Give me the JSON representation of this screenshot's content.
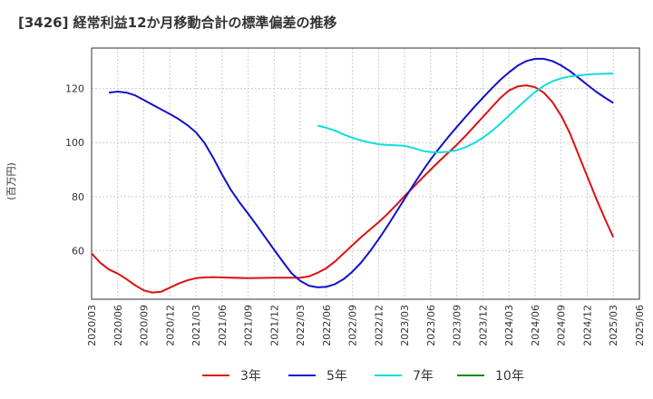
{
  "chart_data": {
    "type": "line",
    "title": "[3426]  経常利益12か月移動合計の標準偏差の推移",
    "ylabel": "(百万円)",
    "xlabel": "",
    "x": [
      "2020/03",
      "2020/06",
      "2020/09",
      "2020/12",
      "2021/03",
      "2021/06",
      "2021/09",
      "2021/12",
      "2022/03",
      "2022/06",
      "2022/09",
      "2022/12",
      "2023/03",
      "2023/06",
      "2023/09",
      "2023/12",
      "2024/03",
      "2024/06",
      "2024/09",
      "2024/12",
      "2025/03",
      "2025/06"
    ],
    "ylim": [
      42,
      135
    ],
    "yticks": [
      60,
      80,
      100,
      120
    ],
    "grid": true,
    "legend_position": "bottom",
    "series": [
      {
        "name": "3年",
        "color": "#dd1111",
        "points": [
          [
            "2020/03",
            59
          ],
          [
            "2020/04",
            55.5
          ],
          [
            "2020/05",
            53
          ],
          [
            "2020/06",
            51.5
          ],
          [
            "2020/07",
            49.5
          ],
          [
            "2020/08",
            47.2
          ],
          [
            "2020/09",
            45.3
          ],
          [
            "2020/10",
            44.5
          ],
          [
            "2020/11",
            44.8
          ],
          [
            "2020/12",
            46.3
          ],
          [
            "2021/01",
            47.8
          ],
          [
            "2021/02",
            49
          ],
          [
            "2021/03",
            49.8
          ],
          [
            "2021/04",
            50.1
          ],
          [
            "2021/05",
            50.2
          ],
          [
            "2021/06",
            50.1
          ],
          [
            "2021/09",
            49.8
          ],
          [
            "2021/12",
            50
          ],
          [
            "2022/03",
            50
          ],
          [
            "2022/04",
            50.5
          ],
          [
            "2022/05",
            51.8
          ],
          [
            "2022/06",
            53.5
          ],
          [
            "2022/07",
            56
          ],
          [
            "2022/08",
            59
          ],
          [
            "2022/09",
            62
          ],
          [
            "2022/10",
            65
          ],
          [
            "2022/11",
            67.8
          ],
          [
            "2022/12",
            70.5
          ],
          [
            "2023/01",
            73.5
          ],
          [
            "2023/02",
            76.8
          ],
          [
            "2023/03",
            80.2
          ],
          [
            "2023/04",
            83.5
          ],
          [
            "2023/05",
            86.8
          ],
          [
            "2023/06",
            90
          ],
          [
            "2023/07",
            93.2
          ],
          [
            "2023/08",
            96.2
          ],
          [
            "2023/09",
            99.2
          ],
          [
            "2023/10",
            102.5
          ],
          [
            "2023/11",
            106
          ],
          [
            "2023/12",
            109.5
          ],
          [
            "2024/01",
            113
          ],
          [
            "2024/02",
            116.5
          ],
          [
            "2024/03",
            119.3
          ],
          [
            "2024/04",
            120.8
          ],
          [
            "2024/05",
            121.2
          ],
          [
            "2024/06",
            120.5
          ],
          [
            "2024/07",
            118.5
          ],
          [
            "2024/08",
            115
          ],
          [
            "2024/09",
            110
          ],
          [
            "2024/10",
            103.5
          ],
          [
            "2024/11",
            95.5
          ],
          [
            "2024/12",
            87.5
          ],
          [
            "2025/01",
            79.5
          ],
          [
            "2025/02",
            72
          ],
          [
            "2025/03",
            65
          ]
        ]
      },
      {
        "name": "5年",
        "color": "#1111cc",
        "points": [
          [
            "2020/05",
            118.5
          ],
          [
            "2020/06",
            118.9
          ],
          [
            "2020/07",
            118.5
          ],
          [
            "2020/08",
            117.5
          ],
          [
            "2020/09",
            115.8
          ],
          [
            "2020/10",
            114
          ],
          [
            "2020/11",
            112.3
          ],
          [
            "2020/12",
            110.6
          ],
          [
            "2021/01",
            108.7
          ],
          [
            "2021/02",
            106.5
          ],
          [
            "2021/03",
            103.8
          ],
          [
            "2021/04",
            99.8
          ],
          [
            "2021/05",
            94.3
          ],
          [
            "2021/06",
            88.2
          ],
          [
            "2021/07",
            82.6
          ],
          [
            "2021/08",
            77.9
          ],
          [
            "2021/09",
            73.7
          ],
          [
            "2021/10",
            69.3
          ],
          [
            "2021/11",
            64.8
          ],
          [
            "2021/12",
            60.3
          ],
          [
            "2022/01",
            55.9
          ],
          [
            "2022/02",
            51.6
          ],
          [
            "2022/03",
            48.8
          ],
          [
            "2022/04",
            47
          ],
          [
            "2022/05",
            46.4
          ],
          [
            "2022/06",
            46.6
          ],
          [
            "2022/07",
            47.6
          ],
          [
            "2022/08",
            49.5
          ],
          [
            "2022/09",
            52.2
          ],
          [
            "2022/10",
            55.6
          ],
          [
            "2022/11",
            59.7
          ],
          [
            "2022/12",
            64.2
          ],
          [
            "2023/01",
            69
          ],
          [
            "2023/02",
            74.1
          ],
          [
            "2023/03",
            79.2
          ],
          [
            "2023/04",
            84.3
          ],
          [
            "2023/05",
            89.2
          ],
          [
            "2023/06",
            93.8
          ],
          [
            "2023/07",
            98
          ],
          [
            "2023/08",
            102
          ],
          [
            "2023/09",
            105.8
          ],
          [
            "2023/10",
            109.5
          ],
          [
            "2023/11",
            113.1
          ],
          [
            "2023/12",
            116.6
          ],
          [
            "2024/01",
            120
          ],
          [
            "2024/02",
            123.2
          ],
          [
            "2024/03",
            126
          ],
          [
            "2024/04",
            128.5
          ],
          [
            "2024/05",
            130.2
          ],
          [
            "2024/06",
            131
          ],
          [
            "2024/07",
            131
          ],
          [
            "2024/08",
            130.2
          ],
          [
            "2024/09",
            128.6
          ],
          [
            "2024/10",
            126.5
          ],
          [
            "2024/11",
            124
          ],
          [
            "2024/12",
            121.4
          ],
          [
            "2025/01",
            118.9
          ],
          [
            "2025/02",
            116.7
          ],
          [
            "2025/03",
            114.7
          ]
        ]
      },
      {
        "name": "7年",
        "color": "#11dddd",
        "points": [
          [
            "2022/05",
            106.3
          ],
          [
            "2022/06",
            105.5
          ],
          [
            "2022/07",
            104.4
          ],
          [
            "2022/08",
            103
          ],
          [
            "2022/09",
            101.8
          ],
          [
            "2022/10",
            100.8
          ],
          [
            "2022/11",
            100
          ],
          [
            "2022/12",
            99.4
          ],
          [
            "2023/01",
            99.1
          ],
          [
            "2023/02",
            99
          ],
          [
            "2023/03",
            98.8
          ],
          [
            "2023/04",
            98
          ],
          [
            "2023/05",
            97
          ],
          [
            "2023/06",
            96.5
          ],
          [
            "2023/07",
            96.4
          ],
          [
            "2023/08",
            96.6
          ],
          [
            "2023/09",
            97.2
          ],
          [
            "2023/10",
            98.3
          ],
          [
            "2023/11",
            99.8
          ],
          [
            "2023/12",
            101.8
          ],
          [
            "2024/01",
            104.2
          ],
          [
            "2024/02",
            107
          ],
          [
            "2024/03",
            110
          ],
          [
            "2024/04",
            113
          ],
          [
            "2024/05",
            116
          ],
          [
            "2024/06",
            118.7
          ],
          [
            "2024/07",
            121
          ],
          [
            "2024/08",
            122.7
          ],
          [
            "2024/09",
            123.8
          ],
          [
            "2024/10",
            124.5
          ],
          [
            "2024/11",
            124.9
          ],
          [
            "2024/12",
            125.2
          ],
          [
            "2025/01",
            125.4
          ],
          [
            "2025/02",
            125.5
          ],
          [
            "2025/03",
            125.6
          ]
        ]
      },
      {
        "name": "10年",
        "color": "#118811",
        "points": []
      }
    ]
  }
}
